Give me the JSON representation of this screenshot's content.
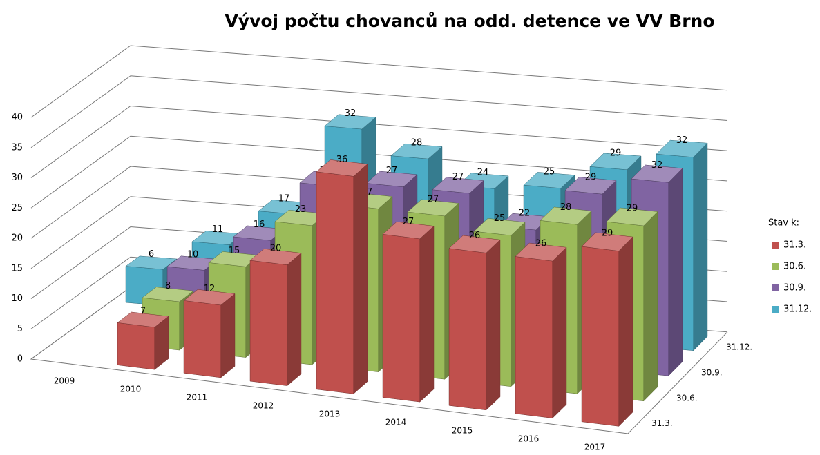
{
  "chart_data": {
    "type": "bar3d",
    "title": "Vývoj počtu chovanců na odd. detence ve VV Brno",
    "categories": [
      "2009",
      "2010",
      "2011",
      "2012",
      "2013",
      "2014",
      "2015",
      "2016",
      "2017"
    ],
    "series": [
      {
        "name": "31.3.",
        "color": "#c0504d",
        "values": [
          null,
          7,
          12,
          20,
          36,
          27,
          26,
          26,
          29
        ]
      },
      {
        "name": "30.6.",
        "color": "#9bbb59",
        "values": [
          null,
          8,
          15,
          23,
          27,
          27,
          25,
          28,
          29
        ]
      },
      {
        "name": "30.9.",
        "color": "#8064a2",
        "values": [
          null,
          10,
          16,
          26,
          27,
          27,
          22,
          29,
          32
        ]
      },
      {
        "name": "31.12.",
        "color": "#4bacc6",
        "values": [
          6,
          11,
          17,
          32,
          28,
          24,
          25,
          29,
          32
        ]
      }
    ],
    "ylim": [
      0,
      40
    ],
    "yticks": [
      0,
      5,
      10,
      15,
      20,
      25,
      30,
      35,
      40
    ],
    "grid": true,
    "legend_title": "Stav k:",
    "legend": "right"
  }
}
